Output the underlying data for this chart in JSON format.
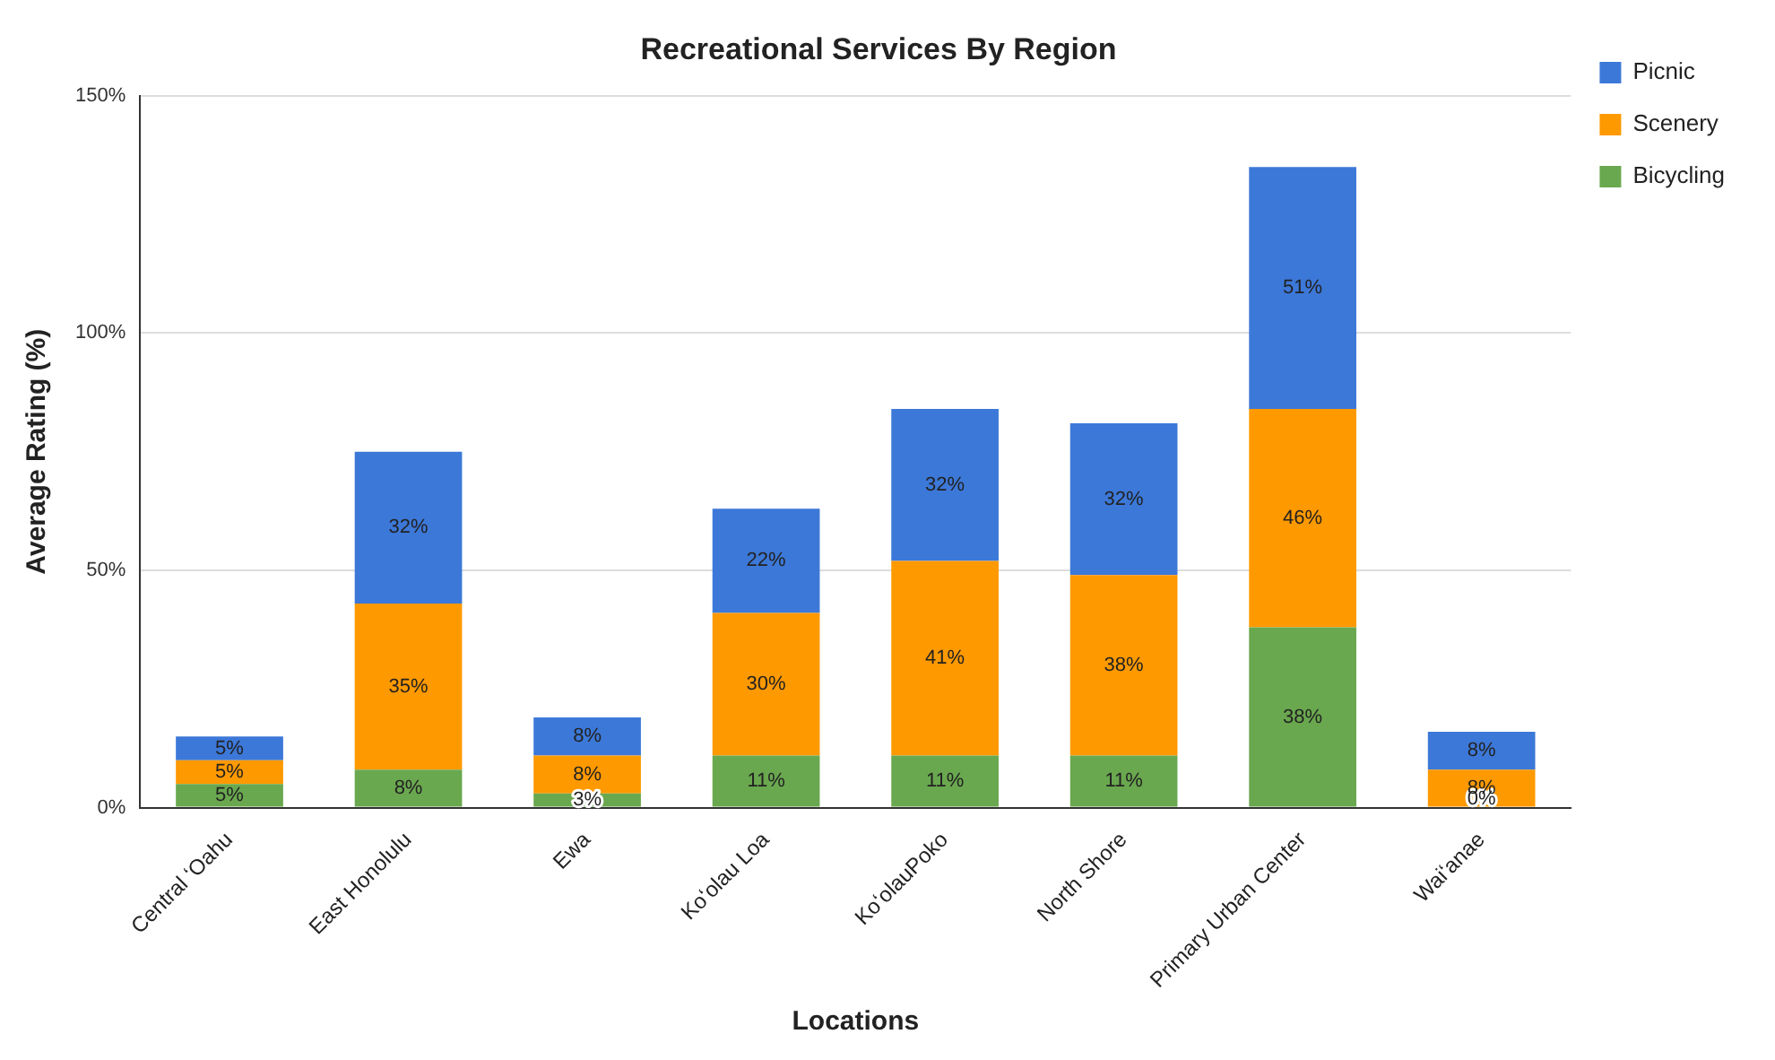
{
  "chart_data": {
    "type": "bar",
    "title": "Recreational Services By Region",
    "xlabel": "Locations",
    "ylabel": "Average Rating (%)",
    "categories": [
      "Central ʻOahu",
      "East Honolulu",
      "Ewa",
      "Koʻolau Loa",
      "KoʻolauPoko",
      "North Shore",
      "Primary Urban Center",
      "Waiʻanae"
    ],
    "stacked": true,
    "series": [
      {
        "name": "Bicycling",
        "color": "#6aa84f",
        "values": [
          5,
          8,
          3,
          11,
          11,
          11,
          38,
          0
        ],
        "value_labels": [
          "5%",
          "8%",
          "3%",
          "11%",
          "11%",
          "11%",
          "38%",
          "0%"
        ]
      },
      {
        "name": "Scenery",
        "color": "#ff9900",
        "values": [
          5,
          35,
          8,
          30,
          41,
          38,
          46,
          8
        ],
        "value_labels": [
          "5%",
          "35%",
          "8%",
          "30%",
          "41%",
          "38%",
          "46%",
          "8%"
        ]
      },
      {
        "name": "Picnic",
        "color": "#3c78d8",
        "values": [
          5,
          32,
          8,
          22,
          32,
          32,
          51,
          8
        ],
        "value_labels": [
          "5%",
          "32%",
          "8%",
          "22%",
          "32%",
          "32%",
          "51%",
          "8%"
        ]
      }
    ],
    "ylim": [
      0,
      150
    ],
    "yticks": [
      {
        "value": 0,
        "label": "0%"
      },
      {
        "value": 50,
        "label": "50%"
      },
      {
        "value": 100,
        "label": "100%"
      },
      {
        "value": 150,
        "label": "150%"
      }
    ],
    "grid": "y",
    "legend": "top right"
  }
}
